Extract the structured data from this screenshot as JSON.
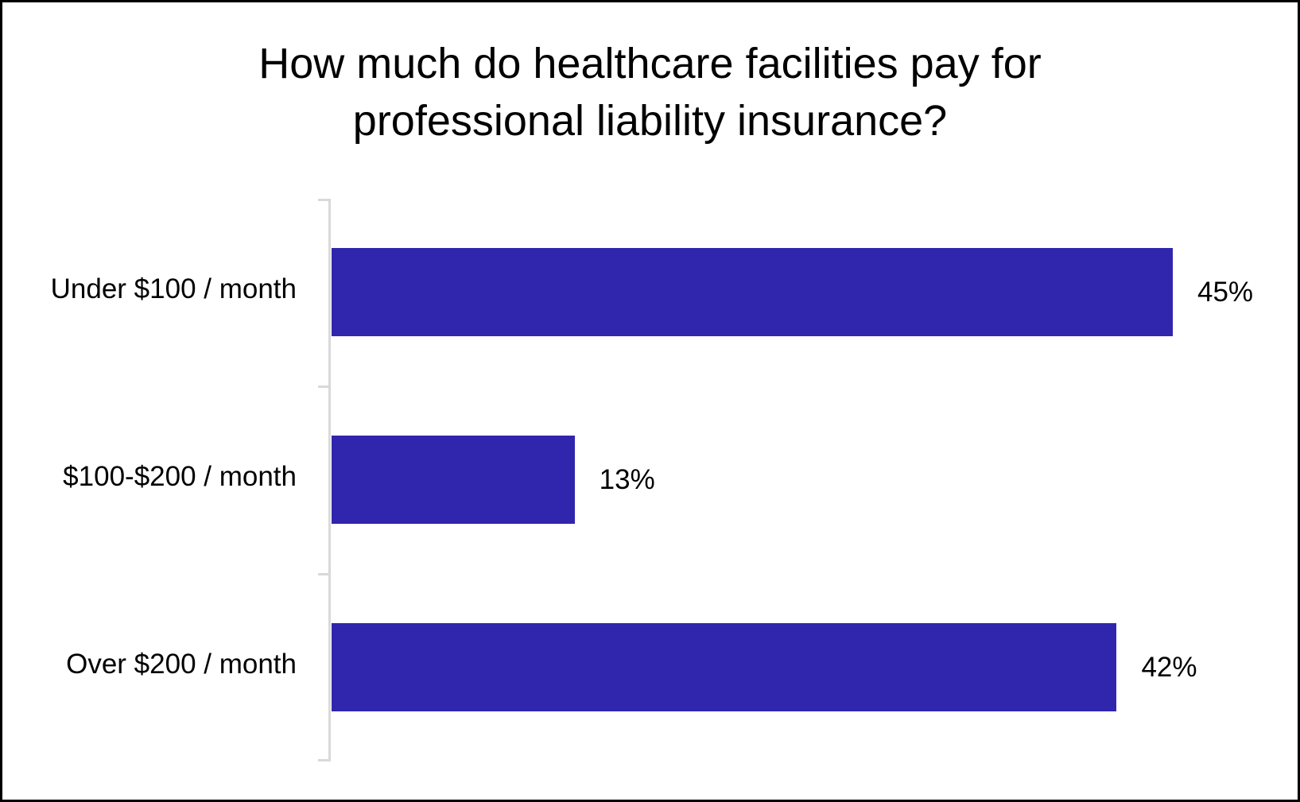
{
  "chart_data": {
    "type": "bar",
    "orientation": "horizontal",
    "title": "How much do healthcare facilities pay for professional liability insurance?",
    "title_lines": [
      "How much do healthcare facilities pay for",
      "professional liability insurance?"
    ],
    "categories": [
      "Under $100 / month",
      "$100-$200 / month",
      "Over $200 / month"
    ],
    "values": [
      45,
      13,
      42
    ],
    "value_labels": [
      "45%",
      "13%",
      "42%"
    ],
    "unit": "%",
    "xlabel": "",
    "ylabel": "",
    "xlim": [
      0,
      50
    ],
    "grid": false,
    "legend": null,
    "bar_color": "#3026AE"
  }
}
